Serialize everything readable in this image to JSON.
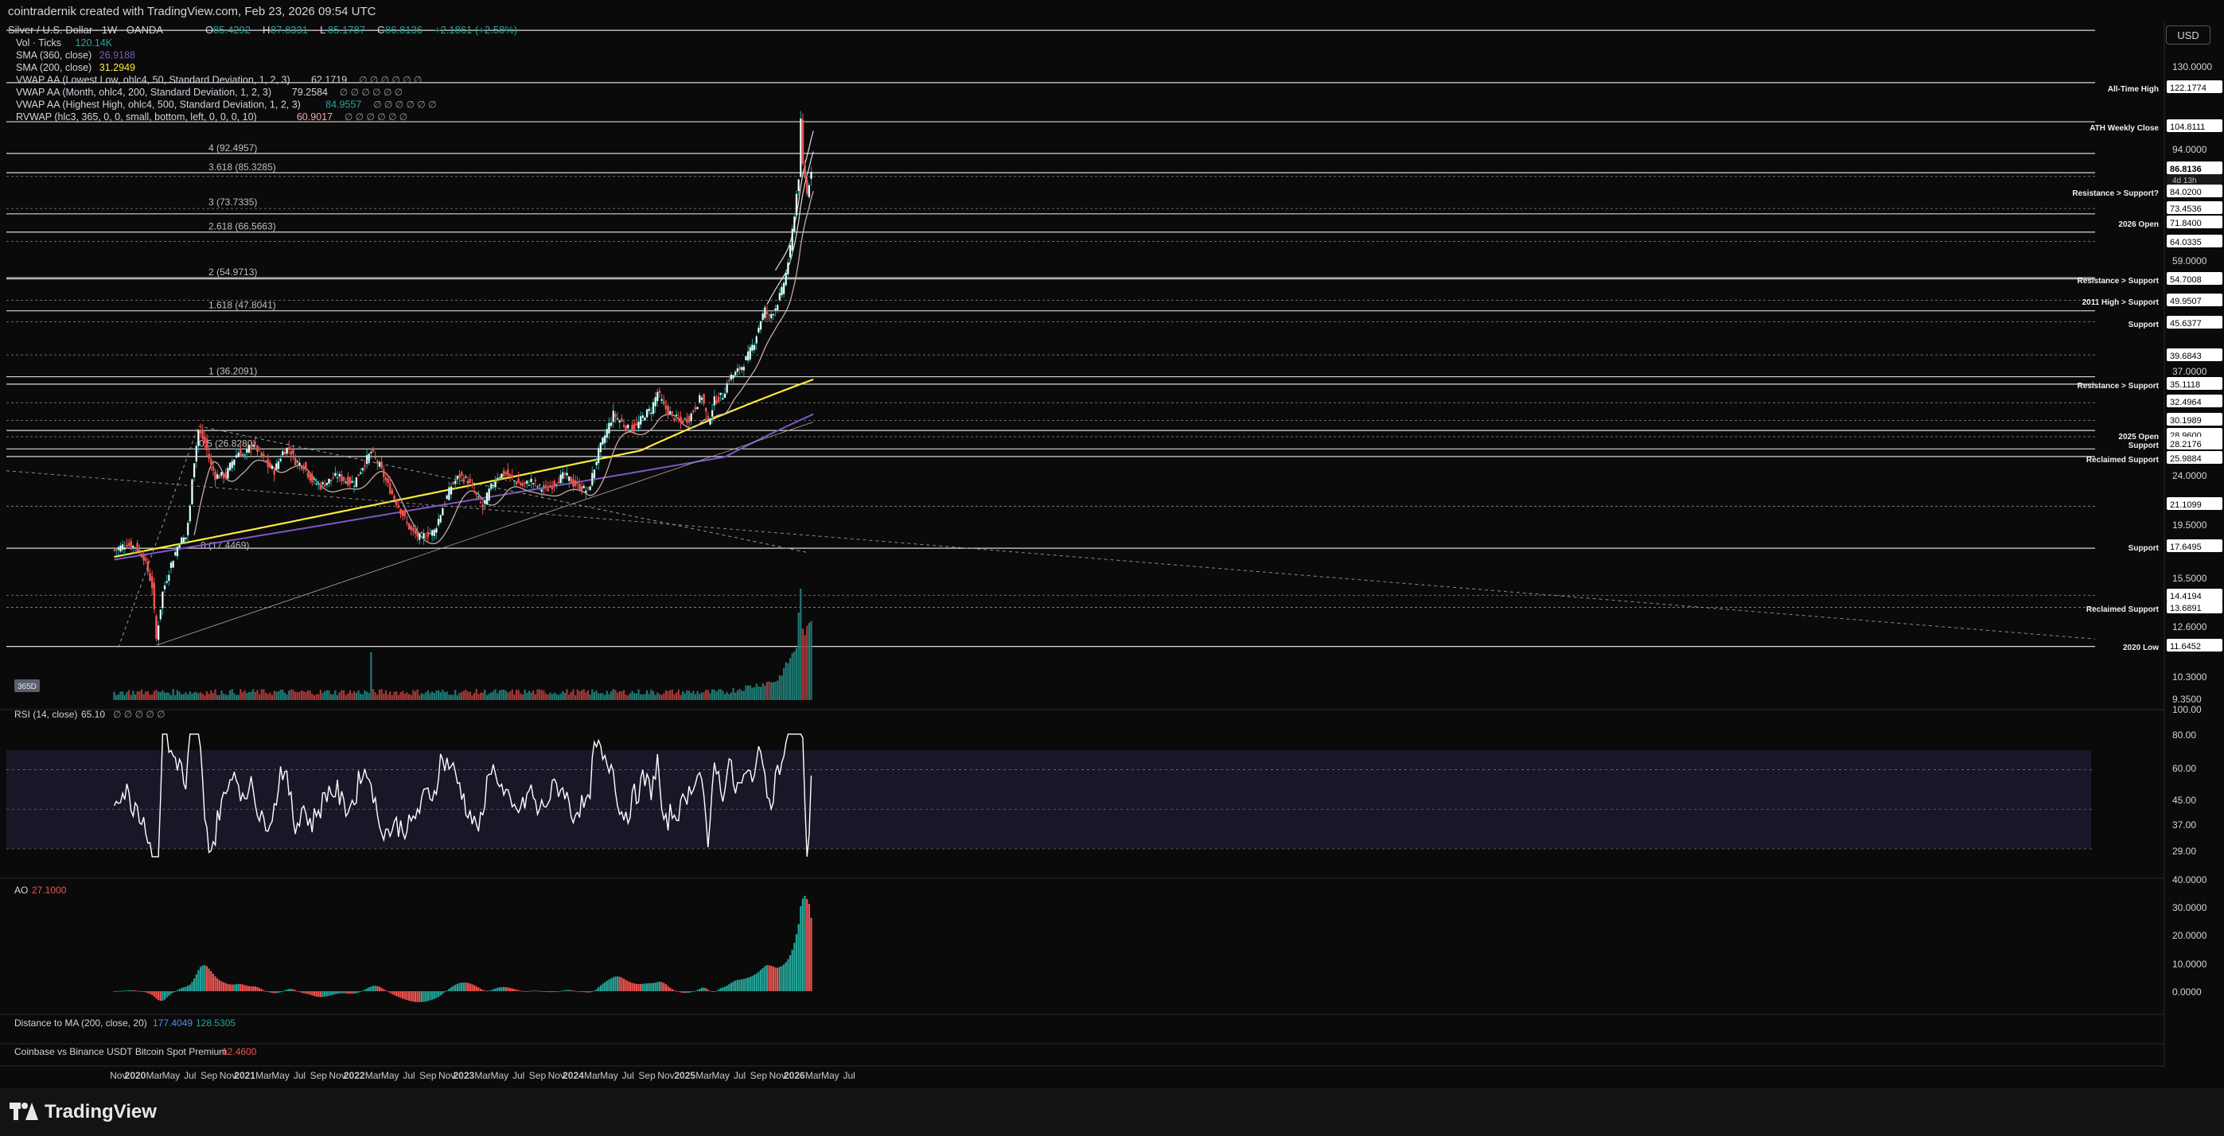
{
  "header": {
    "title": "cointradernik created with TradingView.com, Feb 23, 2026 09:54 UTC"
  },
  "currency_button": "USD",
  "legend": {
    "symbol": "Silver / U.S. Dollar · 1W · OANDA",
    "ohlc": [
      {
        "key": "O",
        "value": "85.4292"
      },
      {
        "key": "H",
        "value": "87.8331"
      },
      {
        "key": "L",
        "value": "85.1787"
      },
      {
        "key": "C",
        "value": "86.8136"
      }
    ],
    "change": "+2.1861 (+2.58%)",
    "indicators": [
      {
        "label": "Vol · Ticks",
        "value": "120.14K",
        "color": "#26a69a"
      },
      {
        "label": "SMA (360, close)",
        "value": "26.9188",
        "color": "#7e57c2"
      },
      {
        "label": "SMA (200, close)",
        "value": "31.2949",
        "color": "#ffeb3b"
      },
      {
        "label": "VWAP AA (Lowest Low, ohlc4, 50, Standard Deviation, 1, 2, 3)",
        "value": "62.1719",
        "color": "#d1d4dc"
      },
      {
        "label": "VWAP AA (Month, ohlc4, 200, Standard Deviation, 1, 2, 3)",
        "value": "79.2584",
        "color": "#d1d4dc"
      },
      {
        "label": "VWAP AA (Highest High, ohlc4, 500, Standard Deviation, 1, 2, 3)",
        "value": "84.9557",
        "color": "#26a69a"
      },
      {
        "label": "RVWAP (hlc3, 365, 0, 0, small, bottom, left, 0, 0, 0, 10)",
        "value": "60.9017",
        "color": "#f7a6a6"
      }
    ],
    "dots": "∅ ∅ ∅ ∅ ∅ ∅"
  },
  "price_axis": [
    "130.0000",
    "94.0000",
    "59.0000",
    "37.0000",
    "24.0000",
    "19.5000",
    "15.5000",
    "12.6000",
    "10.3000",
    "9.3500"
  ],
  "price_labels": [
    {
      "value": "122.1774",
      "tag": "All-Time High"
    },
    {
      "value": "104.8111",
      "tag": "ATH Weekly Close"
    },
    {
      "value": "86.8136",
      "tag": "4d 13h",
      "highlight": true
    },
    {
      "value": "84.0200",
      "tag": "Resistance > Support?"
    },
    {
      "value": "73.4536",
      "tag": ""
    },
    {
      "value": "71.8400",
      "tag": "2026 Open"
    },
    {
      "value": "64.0335",
      "tag": ""
    },
    {
      "value": "54.7008",
      "tag": "Resistance > Support"
    },
    {
      "value": "49.9507",
      "tag": "2011 High > Support"
    },
    {
      "value": "45.6377",
      "tag": "Support"
    },
    {
      "value": "39.6843",
      "tag": ""
    },
    {
      "value": "35.1118",
      "tag": "Resistance > Support"
    },
    {
      "value": "32.4964",
      "tag": ""
    },
    {
      "value": "30.1989",
      "tag": ""
    },
    {
      "value": "28.9600",
      "tag": "2025 Open"
    },
    {
      "value": "28.2176",
      "tag": "Support"
    },
    {
      "value": "25.9884",
      "tag": "Reclaimed Support"
    },
    {
      "value": "21.1099",
      "tag": ""
    },
    {
      "value": "17.6495",
      "tag": "Support"
    },
    {
      "value": "14.4194",
      "tag": ""
    },
    {
      "value": "13.6891",
      "tag": "Reclaimed Support"
    },
    {
      "value": "11.6452",
      "tag": "2020 Low"
    }
  ],
  "fib_levels": [
    {
      "label": "4 (92.4957)",
      "value": 92.4957
    },
    {
      "label": "3.618 (85.3285)",
      "value": 85.3285
    },
    {
      "label": "3 (73.7335)",
      "value": 73.7335
    },
    {
      "label": "2.618 (66.5663)",
      "value": 66.5663
    },
    {
      "label": "2 (54.9713)",
      "value": 54.9713
    },
    {
      "label": "1.618 (47.8041)",
      "value": 47.8041
    },
    {
      "label": "1 (36.2091)",
      "value": 36.2091
    },
    {
      "label": "0.5 (26.8280)",
      "value": 26.828
    },
    {
      "label": "0 (17.4469)",
      "value": 17.4469
    }
  ],
  "badge": "365D",
  "rsi": {
    "label": "RSI (14, close)",
    "value": "65.10",
    "dots": "∅ ∅ ∅ ∅ ∅",
    "axis": [
      "100.00",
      "80.00",
      "60.00",
      "45.00",
      "37.00",
      "29.00"
    ]
  },
  "ao": {
    "label": "AO",
    "value": "27.1000",
    "axis": [
      "40.0000",
      "30.0000",
      "20.0000",
      "10.0000",
      "0.0000"
    ]
  },
  "distance_ma": {
    "label": "Distance to MA (200, close, 20)",
    "value1": "177.4049",
    "value2": "128.5305"
  },
  "premium": {
    "label": "Coinbase vs Binance USDT Bitcoin Spot Premium",
    "value": "−12.4600"
  },
  "time_axis": [
    "Nov",
    "2020",
    "Mar",
    "May",
    "Jul",
    "Sep",
    "Nov",
    "2021",
    "Mar",
    "May",
    "Jul",
    "Sep",
    "Nov",
    "2022",
    "Mar",
    "May",
    "Jul",
    "Sep",
    "Nov",
    "2023",
    "Mar",
    "May",
    "Jul",
    "Sep",
    "Nov",
    "2024",
    "Mar",
    "May",
    "Jul",
    "Sep",
    "Nov",
    "2025",
    "Mar",
    "May",
    "Jul",
    "Sep",
    "Nov",
    "2026",
    "Mar",
    "May",
    "Jul"
  ],
  "footer": {
    "brand": "TradingView"
  },
  "chart_data": {
    "type": "candlestick",
    "title": "Silver / U.S. Dollar · 1W · OANDA",
    "price_scale": "log",
    "ylim": [
      9.35,
      150
    ],
    "key_prices": {
      "2020_low": 11.6452,
      "ath_weekly_close": 104.8111,
      "all_time_high": 122.1774,
      "last_close": 86.8136
    },
    "series": [
      {
        "name": "SMA (200, close)",
        "last": 31.2949,
        "color": "#ffeb3b"
      },
      {
        "name": "SMA (360, close)",
        "last": 26.9188,
        "color": "#7e57c2"
      }
    ],
    "rsi_last": 65.1,
    "ao_last": 27.1
  }
}
